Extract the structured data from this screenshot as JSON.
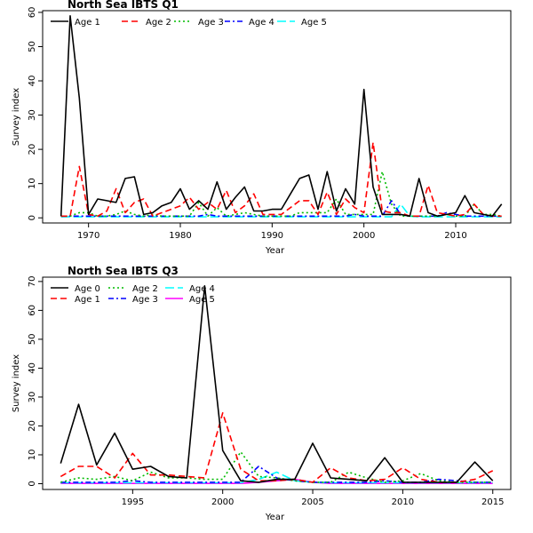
{
  "chart_data": [
    {
      "type": "line",
      "title": "North Sea IBTS Q1",
      "xlabel": "Year",
      "ylabel": "Survey index",
      "xlim": [
        1965,
        2016
      ],
      "ylim": [
        -1.5,
        60.5
      ],
      "xticks": [
        1970,
        1980,
        1990,
        2000,
        2010
      ],
      "yticks": [
        0,
        10,
        20,
        30,
        40,
        50,
        60
      ],
      "legend": "top-left",
      "grid": false,
      "x": [
        1967,
        1968,
        1969,
        1970,
        1971,
        1972,
        1973,
        1974,
        1975,
        1976,
        1977,
        1978,
        1979,
        1980,
        1981,
        1982,
        1983,
        1984,
        1985,
        1986,
        1987,
        1988,
        1989,
        1990,
        1991,
        1992,
        1993,
        1994,
        1995,
        1996,
        1997,
        1998,
        1999,
        2000,
        2001,
        2002,
        2003,
        2004,
        2005,
        2006,
        2007,
        2008,
        2009,
        2010,
        2011,
        2012,
        2013,
        2014,
        2015
      ],
      "series": [
        {
          "name": "Age 1",
          "color": "#000000",
          "dash": "",
          "values": [
            0.5,
            59,
            35,
            1,
            5.5,
            5,
            4.5,
            11.5,
            12,
            1,
            1.5,
            3.5,
            4.5,
            8.5,
            2.5,
            5,
            2.5,
            10.5,
            2.5,
            6,
            9,
            2,
            2,
            2.5,
            2.5,
            7,
            11.5,
            12.5,
            2.5,
            13.5,
            2,
            8.5,
            4,
            37.5,
            9,
            1,
            1,
            1,
            0.5,
            11.5,
            1.5,
            0.5,
            1,
            1.5,
            6.5,
            1.5,
            1,
            0.5,
            4
          ]
        },
        {
          "name": "Age 2",
          "color": "#ff0000",
          "dash": "7,4",
          "values": [
            0.5,
            0.5,
            15,
            1,
            0.5,
            2,
            8.5,
            1.5,
            4.5,
            5.5,
            0.5,
            1.5,
            2.5,
            3.5,
            6,
            2.5,
            4.5,
            2.5,
            8,
            1.5,
            3.5,
            7,
            1,
            1,
            1,
            3,
            5,
            5,
            1,
            7.5,
            1,
            5.5,
            3,
            1.5,
            22,
            2,
            1.5,
            1.5,
            0.5,
            0.5,
            9.5,
            1.5,
            1,
            0.5,
            1,
            4,
            1,
            0.5,
            0.5
          ]
        },
        {
          "name": "Age 3",
          "color": "#00bb00",
          "dash": "2,3",
          "values": [
            0.5,
            0.5,
            1.5,
            1.5,
            0.5,
            0.5,
            1,
            2,
            1,
            0.5,
            1,
            0.5,
            0.5,
            0.5,
            0.5,
            4.5,
            0.5,
            3,
            0.5,
            1,
            1.5,
            1,
            0.5,
            0.5,
            0.5,
            0.5,
            1.5,
            1.5,
            1.5,
            1.5,
            5.5,
            1,
            1,
            1,
            1,
            13.5,
            4,
            0.5,
            0.5,
            0.5,
            0.5,
            0.5,
            1,
            0.5,
            0.5,
            4,
            1,
            1,
            0.5
          ]
        },
        {
          "name": "Age 4",
          "color": "#0000ff",
          "dash": "6,3,2,3",
          "values": [
            0.5,
            0.5,
            0.5,
            0.5,
            0.5,
            0.5,
            0.5,
            0.5,
            0.5,
            0.5,
            0.5,
            0.5,
            0.5,
            0.5,
            0.5,
            0.5,
            1,
            0.5,
            0.5,
            0.5,
            0.5,
            0.5,
            0.5,
            0.5,
            0.5,
            0.5,
            0.5,
            0.5,
            0.5,
            0.5,
            0.5,
            0.5,
            1,
            0.5,
            0.5,
            0.5,
            5,
            1,
            0.5,
            0.5,
            0.5,
            0.5,
            1.5,
            1,
            0.5,
            0.5,
            0.5,
            0.5,
            0.5
          ]
        },
        {
          "name": "Age 5",
          "color": "#00ffff",
          "dash": "10,4",
          "values": [
            0.3,
            0.3,
            0.3,
            0.3,
            0.3,
            0.3,
            0.3,
            0.3,
            0.3,
            0.3,
            0.3,
            0.3,
            0.3,
            0.3,
            0.3,
            0.3,
            0.3,
            0.3,
            0.3,
            0.3,
            0.3,
            0.3,
            0.3,
            0.3,
            0.3,
            0.3,
            0.3,
            0.3,
            0.3,
            0.3,
            0.3,
            0.3,
            0.3,
            0.3,
            0.3,
            0.3,
            0.3,
            4,
            0.5,
            0.3,
            0.3,
            0.3,
            0.3,
            0.3,
            0.3,
            0.3,
            0.3,
            0.3,
            0.3
          ]
        }
      ]
    },
    {
      "type": "line",
      "title": "North Sea IBTS Q3",
      "xlabel": "Year",
      "ylabel": "Survey index",
      "xlim": [
        1990,
        2016
      ],
      "ylim": [
        -2,
        71.5
      ],
      "xticks": [
        1995,
        2000,
        2005,
        2010,
        2015
      ],
      "yticks": [
        0,
        10,
        20,
        30,
        40,
        50,
        60,
        70
      ],
      "legend": "top-left",
      "grid": false,
      "x": [
        1991,
        1992,
        1993,
        1994,
        1995,
        1996,
        1997,
        1998,
        1999,
        2000,
        2001,
        2002,
        2003,
        2004,
        2005,
        2006,
        2007,
        2008,
        2009,
        2010,
        2011,
        2012,
        2013,
        2014,
        2015
      ],
      "series": [
        {
          "name": "Age 0",
          "color": "#000000",
          "dash": "",
          "values": [
            7,
            27.5,
            6.5,
            17.5,
            5,
            6,
            2.5,
            2,
            68.5,
            11.5,
            1,
            0.5,
            1.5,
            1.5,
            14,
            2,
            1.5,
            1,
            9,
            0.5,
            0.5,
            0.5,
            0.5,
            7.5,
            1
          ]
        },
        {
          "name": "Age 1",
          "color": "#ff0000",
          "dash": "7,4",
          "values": [
            2.5,
            6,
            6,
            2,
            10.5,
            3,
            3,
            2.5,
            2,
            24.5,
            5,
            1,
            1,
            1.5,
            0.5,
            5.5,
            2,
            1,
            1.5,
            5.5,
            1.5,
            0.5,
            0.5,
            1.5,
            4.5
          ]
        },
        {
          "name": "Age 2",
          "color": "#00bb00",
          "dash": "2,3",
          "values": [
            0.5,
            2,
            1.5,
            2.5,
            1,
            4,
            2,
            2,
            1.5,
            1.5,
            11,
            2.5,
            2,
            1,
            0.5,
            0.5,
            4,
            2,
            0.5,
            1,
            3.5,
            1,
            0.5,
            0.5,
            0.5
          ]
        },
        {
          "name": "Age 3",
          "color": "#0000ff",
          "dash": "6,3,2,3",
          "values": [
            0.5,
            0.5,
            0.5,
            0.5,
            1,
            0.5,
            0.5,
            0.5,
            0.5,
            0.5,
            0.5,
            6,
            2,
            1,
            0.5,
            0.5,
            0.5,
            0.5,
            1,
            0.5,
            0.5,
            1.5,
            1,
            0.5,
            0.5
          ]
        },
        {
          "name": "Age 4",
          "color": "#00ffff",
          "dash": "10,4",
          "values": [
            0.3,
            0.3,
            0.3,
            0.3,
            0.3,
            0.3,
            0.3,
            0.3,
            0.3,
            0.3,
            0.3,
            1.5,
            4,
            1,
            0.5,
            0.3,
            0.3,
            0.3,
            0.3,
            0.3,
            0.3,
            0.3,
            0.3,
            0.3,
            0.3
          ]
        },
        {
          "name": "Age 5",
          "color": "#ff00ff",
          "dash": "",
          "values": [
            0.1,
            0.1,
            0.1,
            0.1,
            0.1,
            0.1,
            0.1,
            0.1,
            0.1,
            0.1,
            0.1,
            0.5,
            1,
            1.5,
            0.5,
            0.1,
            0.1,
            0.1,
            0.1,
            0.1,
            0.1,
            0.1,
            0.1,
            0.1,
            0.1
          ]
        }
      ]
    }
  ]
}
